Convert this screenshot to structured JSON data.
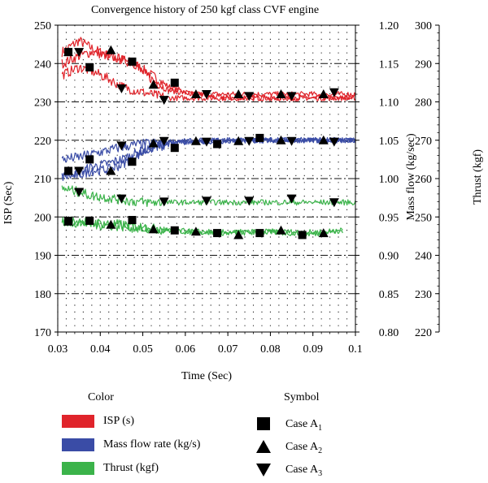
{
  "chart_data": {
    "type": "line",
    "title": "Convergence history of 250 kgf class CVF engine",
    "xlabel": "Time (Sec)",
    "xlim": [
      0.03,
      0.1
    ],
    "xticks": [
      "0.03",
      "0.04",
      "0.05",
      "0.06",
      "0.07",
      "0.08",
      "0.09",
      "0.1"
    ],
    "axes": {
      "isp": {
        "label": "ISP (Sec)",
        "range": [
          170,
          250
        ],
        "ticks": [
          "170",
          "180",
          "190",
          "200",
          "210",
          "220",
          "230",
          "240",
          "250"
        ]
      },
      "mass_flow": {
        "label": "Mass flow (kg/sec)",
        "range": [
          0.8,
          1.2
        ],
        "ticks": [
          "0.80",
          "0.85",
          "0.90",
          "0.95",
          "1.00",
          "1.05",
          "1.10",
          "1.15",
          "1.20"
        ]
      },
      "thrust": {
        "label": "Thrust (kgf)",
        "range": [
          220,
          300
        ],
        "ticks": [
          "220",
          "230",
          "240",
          "250",
          "260",
          "270",
          "280",
          "290",
          "300"
        ]
      }
    },
    "grid": true,
    "legend": {
      "color_header": "Color",
      "symbol_header": "Symbol",
      "colors": [
        {
          "label": "ISP (s)",
          "color": "#e0242b"
        },
        {
          "label": "Mass flow rate (kg/s)",
          "color": "#3a4ca6"
        },
        {
          "label": "Thrust (kgf)",
          "color": "#3bb34a"
        }
      ],
      "symbols": [
        {
          "label": "Case A",
          "sub": "1",
          "marker": "square"
        },
        {
          "label": "Case A",
          "sub": "2",
          "marker": "triangle-up"
        },
        {
          "label": "Case A",
          "sub": "3",
          "marker": "triangle-down"
        }
      ]
    },
    "series": [
      {
        "quantity": "isp",
        "color": "#e0242b",
        "case": "A1",
        "marker": "square",
        "x": [
          0.031,
          0.035,
          0.038,
          0.042,
          0.045,
          0.048,
          0.052,
          0.056,
          0.062,
          0.07,
          0.08,
          0.09,
          0.1
        ],
        "values": [
          243,
          246,
          244,
          242,
          241,
          240,
          237,
          234,
          232,
          231,
          231,
          231,
          231
        ]
      },
      {
        "quantity": "isp",
        "color": "#e0242b",
        "case": "A2",
        "marker": "triangle-up",
        "x": [
          0.031,
          0.035,
          0.038,
          0.042,
          0.045,
          0.048,
          0.052,
          0.056,
          0.062,
          0.07,
          0.08,
          0.09,
          0.1
        ],
        "values": [
          240,
          242,
          243,
          242,
          241,
          240,
          236,
          233,
          232,
          232,
          232,
          232,
          232
        ]
      },
      {
        "quantity": "isp",
        "color": "#e0242b",
        "case": "A3",
        "marker": "triangle-down",
        "x": [
          0.031,
          0.035,
          0.038,
          0.042,
          0.045,
          0.048,
          0.052,
          0.056,
          0.062,
          0.07,
          0.08,
          0.09,
          0.1
        ],
        "values": [
          237,
          239,
          238,
          236,
          234,
          233,
          232,
          231,
          231,
          231,
          231,
          231,
          231
        ]
      },
      {
        "quantity": "mass_flow",
        "color": "#3a4ca6",
        "case": "A1",
        "marker": "square",
        "x": [
          0.031,
          0.035,
          0.038,
          0.042,
          0.045,
          0.048,
          0.052,
          0.056,
          0.062,
          0.07,
          0.08,
          0.09,
          0.1
        ],
        "values": [
          1.007,
          1.008,
          1.015,
          1.02,
          1.025,
          1.032,
          1.04,
          1.045,
          1.048,
          1.05,
          1.05,
          1.05,
          1.05
        ]
      },
      {
        "quantity": "mass_flow",
        "color": "#3a4ca6",
        "case": "A2",
        "marker": "triangle-up",
        "x": [
          0.031,
          0.035,
          0.038,
          0.042,
          0.045,
          0.048,
          0.052,
          0.056,
          0.062,
          0.07,
          0.08,
          0.09,
          0.1
        ],
        "values": [
          1.002,
          1.005,
          1.01,
          1.012,
          1.018,
          1.028,
          1.04,
          1.046,
          1.048,
          1.049,
          1.05,
          1.05,
          1.05
        ]
      },
      {
        "quantity": "mass_flow",
        "color": "#3a4ca6",
        "case": "A3",
        "marker": "triangle-down",
        "x": [
          0.031,
          0.035,
          0.038,
          0.042,
          0.045,
          0.048,
          0.052,
          0.056,
          0.062,
          0.07,
          0.08,
          0.09,
          0.1
        ],
        "values": [
          1.025,
          1.028,
          1.032,
          1.037,
          1.041,
          1.044,
          1.046,
          1.048,
          1.049,
          1.05,
          1.05,
          1.05,
          1.05
        ]
      },
      {
        "quantity": "thrust",
        "color": "#3bb34a",
        "case": "A1",
        "marker": "square",
        "x": [
          0.031,
          0.035,
          0.038,
          0.042,
          0.045,
          0.048,
          0.052,
          0.056,
          0.062,
          0.07,
          0.08,
          0.09,
          0.097
        ],
        "values": [
          248.8,
          249,
          248.5,
          248.2,
          248,
          247.5,
          247,
          246.5,
          246,
          245.8,
          246,
          245.5,
          246.5
        ]
      },
      {
        "quantity": "thrust",
        "color": "#3bb34a",
        "case": "A2",
        "marker": "triangle-up",
        "x": [
          0.031,
          0.035,
          0.038,
          0.042,
          0.045,
          0.048,
          0.052,
          0.056,
          0.062,
          0.07,
          0.08,
          0.09,
          0.097
        ],
        "values": [
          248.5,
          248.5,
          248,
          247.8,
          247.5,
          247.2,
          246.8,
          246.5,
          246.2,
          246,
          246.2,
          246,
          246.5
        ]
      },
      {
        "quantity": "thrust",
        "color": "#3bb34a",
        "case": "A3",
        "marker": "triangle-down",
        "x": [
          0.031,
          0.035,
          0.038,
          0.042,
          0.045,
          0.048,
          0.052,
          0.056,
          0.062,
          0.07,
          0.08,
          0.09,
          0.1
        ],
        "values": [
          257.5,
          256.5,
          255.5,
          255,
          254.5,
          254,
          253.8,
          253.8,
          253.8,
          253.8,
          253.8,
          253.8,
          253.8
        ]
      }
    ],
    "markers": {
      "square": [
        {
          "axis": "isp",
          "x": [
            0.0325,
            0.0375,
            0.0475,
            0.0575
          ],
          "values": [
            243,
            239,
            240.5,
            235
          ]
        },
        {
          "axis": "mass_flow",
          "x": [
            0.0325,
            0.0375,
            0.0475,
            0.0575,
            0.0675,
            0.0775
          ],
          "values": [
            1.01,
            1.025,
            1.022,
            1.04,
            1.045,
            1.053
          ]
        },
        {
          "axis": "thrust",
          "x": [
            0.0325,
            0.0375,
            0.0475,
            0.0575,
            0.0675,
            0.0775,
            0.0875
          ],
          "values": [
            249,
            249,
            249.2,
            246.5,
            245.8,
            245.8,
            245.3
          ]
        }
      ],
      "triangle-up": [
        {
          "axis": "isp",
          "x": [
            0.0325,
            0.0425,
            0.0525,
            0.0625,
            0.0725,
            0.0825,
            0.0925
          ],
          "values": [
            243,
            243.5,
            234.5,
            232,
            232,
            232,
            232
          ]
        },
        {
          "axis": "mass_flow",
          "x": [
            0.0325,
            0.0425,
            0.0525,
            0.0625,
            0.0725,
            0.0825,
            0.0925
          ],
          "values": [
            1.01,
            1.01,
            1.046,
            1.049,
            1.049,
            1.05,
            1.05
          ]
        },
        {
          "axis": "thrust",
          "x": [
            0.0325,
            0.0425,
            0.0525,
            0.0625,
            0.0725,
            0.0825,
            0.0925
          ],
          "values": [
            248.8,
            248,
            246.8,
            246.2,
            245.3,
            246.5,
            245.8
          ]
        }
      ],
      "triangle-down": [
        {
          "axis": "isp",
          "x": [
            0.035,
            0.045,
            0.055,
            0.065,
            0.075,
            0.085,
            0.095
          ],
          "values": [
            243,
            233.5,
            230.5,
            232,
            231.5,
            231.5,
            232.5
          ]
        },
        {
          "axis": "mass_flow",
          "x": [
            0.035,
            0.045,
            0.055,
            0.065,
            0.075,
            0.085,
            0.095
          ],
          "values": [
            1.01,
            1.043,
            1.049,
            1.048,
            1.049,
            1.049,
            1.048
          ]
        },
        {
          "axis": "thrust",
          "x": [
            0.035,
            0.045,
            0.055,
            0.065,
            0.075,
            0.085,
            0.095
          ],
          "values": [
            256.5,
            254.8,
            254,
            254.2,
            254.2,
            254.8,
            253.8
          ]
        }
      ]
    }
  }
}
